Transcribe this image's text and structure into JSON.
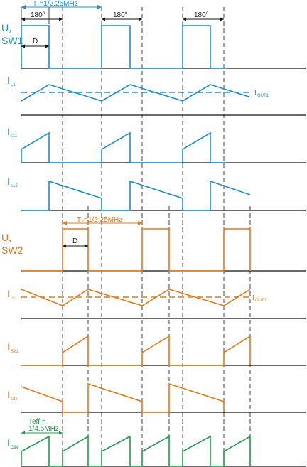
{
  "colors": {
    "ch1": "#1f8fc9",
    "ch2": "#e07a1a",
    "cin": "#1f9a4e",
    "axis": "#111111",
    "guide": "#333333"
  },
  "top": {
    "period_label": "T₁=1/2.25MHz",
    "phase_labels": [
      "180°",
      "180°",
      "180°"
    ],
    "duty_label": "D"
  },
  "ch2_annot": {
    "period_label": "T₂=1/2.25MHz",
    "duty_label": "D"
  },
  "cin_annot": {
    "teff_line1": "Teff =",
    "teff_line2": "1/4.5MHz"
  },
  "traces": [
    {
      "id": "u-sw1",
      "label": "U,",
      "label2": "SW1",
      "big": true,
      "color": "ch1"
    },
    {
      "id": "il1",
      "label": "I",
      "sub": "L1",
      "color": "ch1",
      "right_label": "I",
      "right_sub": "OUT1"
    },
    {
      "id": "is11",
      "label": "I",
      "sub": "s11",
      "color": "ch1"
    },
    {
      "id": "is12",
      "label": "I",
      "sub": "s12",
      "color": "ch1"
    },
    {
      "id": "u-sw2",
      "label": "U,",
      "label2": "SW2",
      "big": true,
      "color": "ch2"
    },
    {
      "id": "il2",
      "label": "I",
      "sub": "l2",
      "color": "ch2",
      "right_label": "I",
      "right_sub": "OUT2"
    },
    {
      "id": "is21",
      "label": "I",
      "sub": "S21",
      "color": "ch2"
    },
    {
      "id": "is22",
      "label": "I",
      "sub": "s22",
      "color": "ch2"
    },
    {
      "id": "icin",
      "label": "I",
      "sub": "CIN",
      "color": "cin"
    }
  ]
}
